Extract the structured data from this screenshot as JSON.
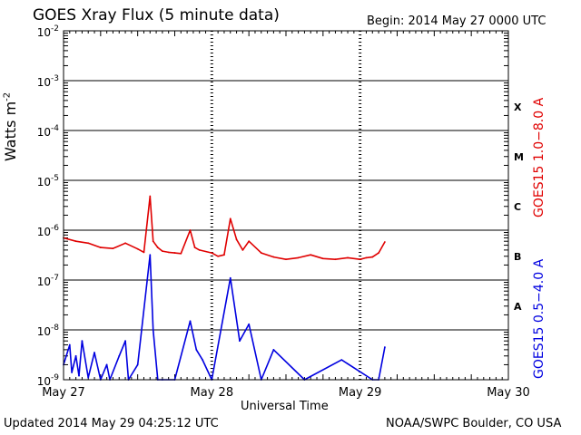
{
  "header": {
    "title": "GOES Xray Flux (5 minute data)",
    "begin": "Begin:  2014 May 27 0000 UTC"
  },
  "footer": {
    "updated": "Updated 2014 May 29 04:25:12 UTC",
    "credit": "NOAA/SWPC Boulder, CO USA"
  },
  "chart_data": {
    "type": "line",
    "title": "GOES Xray Flux (5 minute data)",
    "xlabel": "Universal Time",
    "ylabel_base": "Watts m",
    "ylabel_exp": "-2",
    "y_scale": "log",
    "ylim": [
      1e-09,
      0.01
    ],
    "xlim": [
      "2014-05-27 00:00",
      "2014-05-30 00:00"
    ],
    "x_ticks": [
      "May 27",
      "May 28",
      "May 29",
      "May 30"
    ],
    "y_ticks": [
      {
        "base": "10",
        "exp": "-2",
        "value": 0.01
      },
      {
        "base": "10",
        "exp": "-3",
        "value": 0.001
      },
      {
        "base": "10",
        "exp": "-4",
        "value": 0.0001
      },
      {
        "base": "10",
        "exp": "-5",
        "value": 1e-05
      },
      {
        "base": "10",
        "exp": "-6",
        "value": 1e-06
      },
      {
        "base": "10",
        "exp": "-7",
        "value": 1e-07
      },
      {
        "base": "10",
        "exp": "-8",
        "value": 1e-08
      },
      {
        "base": "10",
        "exp": "-9",
        "value": 1e-09
      }
    ],
    "flare_classes": [
      {
        "label": "X",
        "value": 0.0003
      },
      {
        "label": "M",
        "value": 3e-05
      },
      {
        "label": "C",
        "value": 3e-06
      },
      {
        "label": "B",
        "value": 3e-07
      },
      {
        "label": "A",
        "value": 3e-08
      }
    ],
    "grid": true,
    "series": [
      {
        "name": "GOES15 1.0−8.0 A",
        "color": "#e00000",
        "x": [
          "2014-05-27 00:00",
          "2014-05-27 02:00",
          "2014-05-27 04:00",
          "2014-05-27 06:00",
          "2014-05-27 08:00",
          "2014-05-27 10:00",
          "2014-05-27 12:00",
          "2014-05-27 13:00",
          "2014-05-27 14:00",
          "2014-05-27 14:30",
          "2014-05-27 15:15",
          "2014-05-27 16:00",
          "2014-05-27 17:00",
          "2014-05-27 18:00",
          "2014-05-27 19:00",
          "2014-05-27 20:30",
          "2014-05-27 21:15",
          "2014-05-27 22:00",
          "2014-05-28 00:00",
          "2014-05-28 01:00",
          "2014-05-28 02:00",
          "2014-05-28 03:00",
          "2014-05-28 04:00",
          "2014-05-28 05:00",
          "2014-05-28 06:00",
          "2014-05-28 08:00",
          "2014-05-28 10:00",
          "2014-05-28 12:00",
          "2014-05-28 14:00",
          "2014-05-28 16:00",
          "2014-05-28 18:00",
          "2014-05-28 20:00",
          "2014-05-28 22:00",
          "2014-05-29 00:00",
          "2014-05-29 01:00",
          "2014-05-29 02:00",
          "2014-05-29 03:00",
          "2014-05-29 04:00"
        ],
        "values": [
          7e-07,
          6e-07,
          5.5e-07,
          4.5e-07,
          4.3e-07,
          5.5e-07,
          4.2e-07,
          3.6e-07,
          4.8e-06,
          6e-07,
          4.5e-07,
          3.8e-07,
          3.6e-07,
          3.5e-07,
          3.4e-07,
          1e-06,
          4.5e-07,
          4e-07,
          3.5e-07,
          3e-07,
          3.2e-07,
          1.7e-06,
          6.5e-07,
          4e-07,
          6e-07,
          3.5e-07,
          2.9e-07,
          2.6e-07,
          2.8e-07,
          3.2e-07,
          2.7e-07,
          2.6e-07,
          2.8e-07,
          2.6e-07,
          2.8e-07,
          2.9e-07,
          3.5e-07,
          5.8e-07
        ]
      },
      {
        "name": "GOES15 0.5−4.0 A",
        "color": "#0000e0",
        "x": [
          "2014-05-27 00:00",
          "2014-05-27 01:00",
          "2014-05-27 01:20",
          "2014-05-27 02:00",
          "2014-05-27 02:30",
          "2014-05-27 03:00",
          "2014-05-27 04:00",
          "2014-05-27 05:00",
          "2014-05-27 06:00",
          "2014-05-27 07:00",
          "2014-05-27 07:30",
          "2014-05-27 09:00",
          "2014-05-27 10:00",
          "2014-05-27 10:30",
          "2014-05-27 12:00",
          "2014-05-27 14:00",
          "2014-05-27 14:30",
          "2014-05-27 15:15",
          "2014-05-27 16:00",
          "2014-05-27 18:00",
          "2014-05-27 20:30",
          "2014-05-27 21:30",
          "2014-05-27 22:30",
          "2014-05-28 00:00",
          "2014-05-28 03:00",
          "2014-05-28 04:30",
          "2014-05-28 06:00",
          "2014-05-28 08:00",
          "2014-05-28 10:00",
          "2014-05-28 15:00",
          "2014-05-28 21:00",
          "2014-05-29 02:00",
          "2014-05-29 03:00",
          "2014-05-29 04:00"
        ],
        "values": [
          2e-09,
          5e-09,
          1.4e-09,
          3e-09,
          1.2e-09,
          6e-09,
          1.1e-09,
          3.5e-09,
          1e-09,
          2e-09,
          1e-09,
          3e-09,
          6e-09,
          1e-09,
          2e-09,
          3.2e-07,
          1e-08,
          1e-09,
          1e-09,
          1e-09,
          1.5e-08,
          4e-09,
          2.5e-09,
          1e-09,
          1.1e-07,
          6e-09,
          1.3e-08,
          1e-09,
          4e-09,
          1e-09,
          2.5e-09,
          1e-09,
          1e-09,
          4.5e-09
        ]
      }
    ]
  }
}
